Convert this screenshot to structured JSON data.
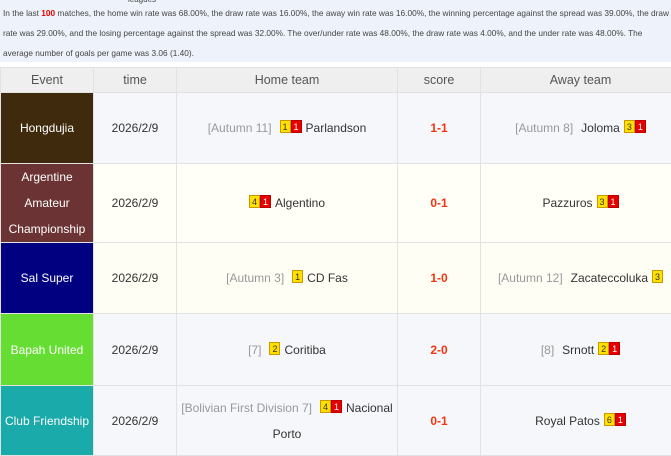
{
  "summary": {
    "leagues": "leagues",
    "pre": "In the last ",
    "count": "100",
    "text": " matches, the home win rate was 68.00%, the draw rate was 16.00%,      the away win rate was 16.00%, the winning percentage against the spread was 39.00%, the draw rate was 29.00%, and the losing percentage against the spread was 32.00%.     The over/under rate was 48.00%, the draw rate was 4.00%, and the under rate was 48.00%.     The average number of goals per game was 3.06 (1.40)."
  },
  "headers": [
    "Event",
    "time",
    "Home team",
    "score",
    "Away team"
  ],
  "rows": [
    {
      "event": "Hongdujia",
      "color": "#3f2a0d",
      "time": "2026/2/9",
      "home_rank": "[Autumn 11]",
      "home_badges": [
        "1",
        "1"
      ],
      "home": "Parlandson",
      "score": "1-1",
      "away_rank": "[Autumn 8]",
      "away": "Joloma",
      "away_badges": [
        "3",
        "1"
      ]
    },
    {
      "event": "Argentine Amateur Championship",
      "color": "#6b3333",
      "time": "2026/2/9",
      "home_rank": "",
      "home_badges": [
        "4",
        "1"
      ],
      "home": "Algentino",
      "score": "0-1",
      "away_rank": "",
      "away": "Pazzuros",
      "away_badges": [
        "3",
        "1"
      ]
    },
    {
      "event": "Sal Super",
      "color": "#000080",
      "time": "2026/2/9",
      "home_rank": "[Autumn 3]",
      "home_badges": [
        "1"
      ],
      "home": "CD Fas",
      "score": "1-0",
      "away_rank": "[Autumn 12]",
      "away": "Zacateccoluka",
      "away_badges": [
        "3"
      ]
    },
    {
      "event": "Bapah United",
      "color": "#66dd33",
      "time": "2026/2/9",
      "home_rank": "[7]",
      "home_badges": [
        "2"
      ],
      "home": "Coritiba",
      "score": "2-0",
      "away_rank": "[8]",
      "away": "Srnott",
      "away_badges": [
        "2",
        "1"
      ]
    },
    {
      "event": "Club Friendship",
      "color": "#1aaaaa",
      "time": "2026/2/9",
      "home_rank": "[Bolivian First Division 7]",
      "home_badges": [
        "4",
        "1"
      ],
      "home": "Nacional Porto",
      "score": "0-1",
      "away_rank": "",
      "away": "Royal Patos",
      "away_badges": [
        "6",
        "1"
      ]
    }
  ],
  "row_bg": [
    "#f5f7fb",
    "#fffef7",
    "#fffef5",
    "#f5f7fa",
    "#f5f7fa"
  ]
}
